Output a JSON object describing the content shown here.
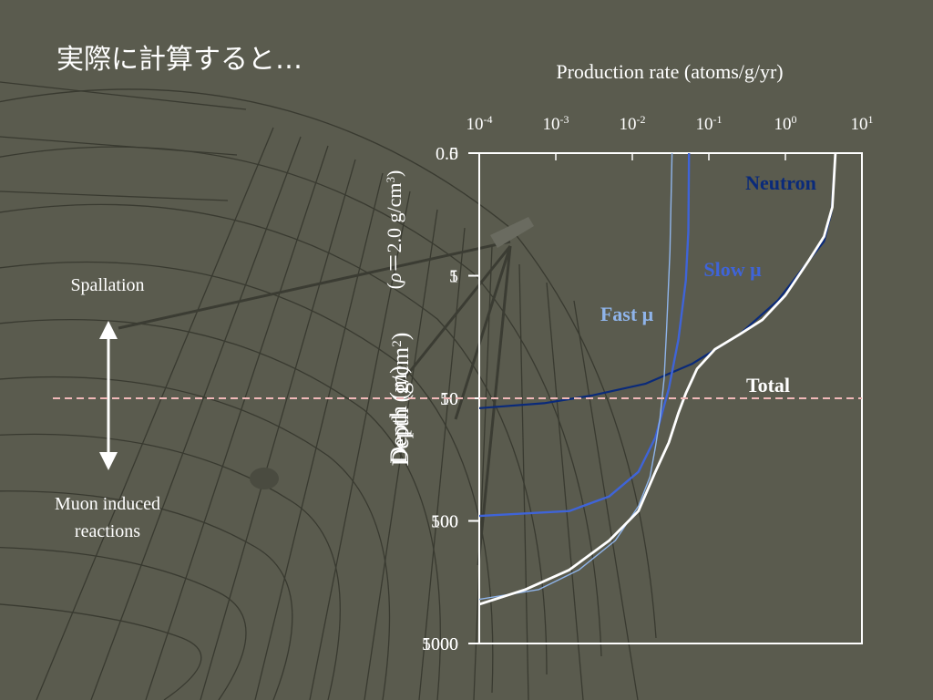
{
  "slide": {
    "title": "実際に計算すると…",
    "spallation_label": "Spallation",
    "muon_label_line1": "Muon induced",
    "muon_label_line2": "reactions"
  },
  "colors": {
    "background": "#5a5b4e",
    "neutron": "#0a2a7a",
    "slow_muon": "#3f64d8",
    "fast_muon": "#8fb4ea",
    "total": "#ffffff",
    "divider": "#f0b8b8"
  },
  "chart_data": {
    "type": "line",
    "xlabel": "Production rate (atoms/g/yr)",
    "x_scale": "log",
    "xlim": [
      0.0001,
      10
    ],
    "x_ticks": [
      {
        "base": "10",
        "exp": "-4",
        "value": 0.0001
      },
      {
        "base": "10",
        "exp": "-3",
        "value": 0.001
      },
      {
        "base": "10",
        "exp": "-2",
        "value": 0.01
      },
      {
        "base": "10",
        "exp": "-1",
        "value": 0.1
      },
      {
        "base": "10",
        "exp": "0",
        "value": 1
      },
      {
        "base": "10",
        "exp": "1",
        "value": 10
      }
    ],
    "ylabel_depth": "Depth (g/cm",
    "ylabel_depth_sup": "2",
    "ylabel_depth_close": ")",
    "ylabel_m": "Depth (m)",
    "ylabel_rho_open": "(",
    "ylabel_rho": "ρ",
    "ylabel_rho_eq": "＝2.0 g/cm",
    "ylabel_rho_sup": "3",
    "ylabel_rho_close": ")",
    "y_scale": "linear",
    "ylim": [
      0,
      5000
    ],
    "y_ticks_gcm2": [
      "0",
      "1",
      "10",
      "100",
      "1000"
    ],
    "y_ticks_m": [
      "0.5",
      "5",
      "50",
      "500",
      "5000"
    ],
    "divider_depth": 2500,
    "series": [
      {
        "name": "Neutron",
        "points": [
          [
            4.5,
            0
          ],
          [
            4.0,
            600
          ],
          [
            3.2,
            900
          ],
          [
            2.0,
            1100
          ],
          [
            0.8,
            1500
          ],
          [
            0.25,
            1850
          ],
          [
            0.06,
            2150
          ],
          [
            0.015,
            2350
          ],
          [
            0.003,
            2470
          ],
          [
            0.0007,
            2550
          ],
          [
            0.0001,
            2600
          ]
        ]
      },
      {
        "name": "Slow μ",
        "points": [
          [
            0.055,
            0
          ],
          [
            0.054,
            800
          ],
          [
            0.05,
            1300
          ],
          [
            0.04,
            1900
          ],
          [
            0.03,
            2400
          ],
          [
            0.02,
            2900
          ],
          [
            0.012,
            3250
          ],
          [
            0.005,
            3500
          ],
          [
            0.0015,
            3650
          ],
          [
            0.0001,
            3700
          ]
        ]
      },
      {
        "name": "Fast μ",
        "points": [
          [
            0.033,
            0
          ],
          [
            0.031,
            1000
          ],
          [
            0.028,
            1800
          ],
          [
            0.026,
            2300
          ],
          [
            0.023,
            2700
          ],
          [
            0.02,
            3000
          ],
          [
            0.017,
            3300
          ],
          [
            0.012,
            3600
          ],
          [
            0.006,
            3950
          ],
          [
            0.002,
            4250
          ],
          [
            0.0006,
            4450
          ],
          [
            0.0001,
            4550
          ]
        ]
      },
      {
        "name": "Total",
        "points": [
          [
            4.5,
            0
          ],
          [
            4.1,
            550
          ],
          [
            3.2,
            850
          ],
          [
            2.0,
            1100
          ],
          [
            1.0,
            1450
          ],
          [
            0.5,
            1700
          ],
          [
            0.25,
            1850
          ],
          [
            0.12,
            2000
          ],
          [
            0.07,
            2200
          ],
          [
            0.05,
            2450
          ],
          [
            0.04,
            2650
          ],
          [
            0.03,
            2950
          ],
          [
            0.02,
            3250
          ],
          [
            0.012,
            3650
          ],
          [
            0.005,
            3950
          ],
          [
            0.0015,
            4250
          ],
          [
            0.0004,
            4450
          ],
          [
            0.0001,
            4600
          ]
        ]
      }
    ],
    "annotations": [
      "Neutron",
      "Slow μ",
      "Fast μ",
      "Total"
    ]
  }
}
